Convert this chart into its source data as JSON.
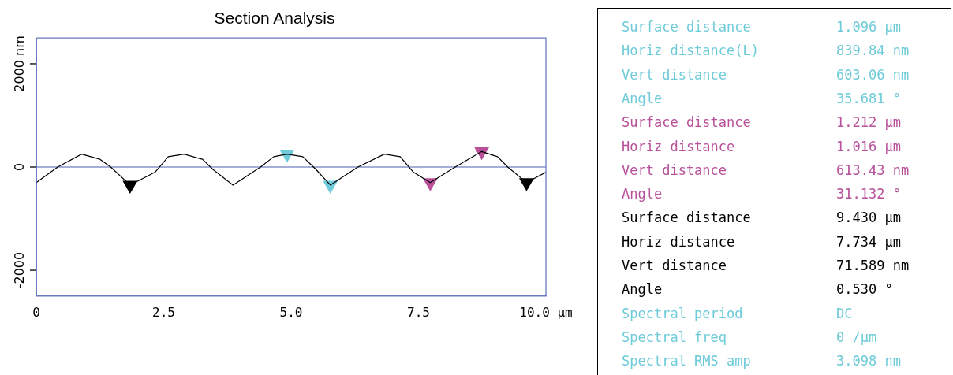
{
  "chart_data": [
    {
      "type": "line",
      "title": "Section Analysis",
      "x": [
        0,
        0.42,
        0.89,
        1.25,
        1.46,
        1.84,
        2.33,
        2.59,
        2.9,
        3.26,
        3.47,
        3.86,
        4.4,
        4.66,
        4.92,
        5.23,
        5.49,
        5.77,
        6.31,
        6.83,
        7.14,
        7.4,
        7.73,
        8.22,
        8.74,
        9.05,
        9.25,
        9.62,
        10
      ],
      "series": [
        {
          "color": "#000000",
          "values": [
            -300,
            0,
            250,
            150,
            0,
            -350,
            -100,
            200,
            250,
            150,
            -50,
            -350,
            0,
            200,
            250,
            200,
            -50,
            -350,
            0,
            250,
            200,
            -100,
            -300,
            0,
            300,
            200,
            0,
            -300,
            -100
          ]
        },
        {
          "type": "scatter",
          "color": "#000000",
          "marker": "triangle",
          "x": [
            1.84,
            9.62
          ],
          "values": [
            -350,
            -300
          ]
        },
        {
          "type": "scatter",
          "color": "#6ecbd9",
          "marker": "triangle",
          "x": [
            4.92,
            5.77
          ],
          "values": [
            250,
            -350
          ]
        },
        {
          "type": "scatter",
          "color": "#b8509a",
          "marker": "triangle",
          "x": [
            7.73,
            8.74
          ],
          "values": [
            -300,
            300
          ]
        }
      ],
      "xlim": [
        0,
        10
      ],
      "ylim": [
        -2500,
        2500
      ],
      "xticks": [
        0,
        2.5,
        {
          "value": 5,
          "label": "5.0"
        },
        7.5,
        {
          "value": 10,
          "label": "10.0 µm"
        }
      ],
      "yticks": [
        -2000,
        0,
        {
          "value": 2000,
          "label": "2000 nm"
        }
      ],
      "ref_lines": [
        {
          "axis": "y",
          "value": 0,
          "color": "#4a5fb0"
        }
      ],
      "grid": false,
      "legend": false
    },
    {
      "type": "other",
      "annotations": [
        "Surface distance",
        "1.096 µm",
        "Horiz distance(L)",
        "839.84 nm",
        "Vert distance",
        "603.06 nm",
        "Angle",
        "35.681 °",
        "Surface distance",
        "1.212 µm",
        "Horiz distance",
        "1.016 µm",
        "Vert distance",
        "613.43 nm",
        "Angle",
        "31.132 °",
        "Surface distance",
        "9.430 µm",
        "Horiz distance",
        "7.734 µm",
        "Vert distance",
        "71.589 nm",
        "Angle",
        "0.530 °",
        "Spectral period",
        "DC",
        "Spectral freq",
        "0 /µm",
        "Spectral RMS amp",
        "3.098 nm"
      ],
      "colors": [
        "#6ecbd9",
        "#6ecbd9",
        "#6ecbd9",
        "#6ecbd9",
        "#6ecbd9",
        "#6ecbd9",
        "#6ecbd9",
        "#6ecbd9",
        "#b8509a",
        "#b8509a",
        "#b8509a",
        "#b8509a",
        "#b8509a",
        "#b8509a",
        "#b8509a",
        "#b8509a",
        "#000000",
        "#000000",
        "#000000",
        "#000000",
        "#000000",
        "#000000",
        "#000000",
        "#000000",
        "#6ecbd9",
        "#6ecbd9",
        "#6ecbd9",
        "#6ecbd9",
        "#6ecbd9",
        "#6ecbd9"
      ]
    }
  ]
}
